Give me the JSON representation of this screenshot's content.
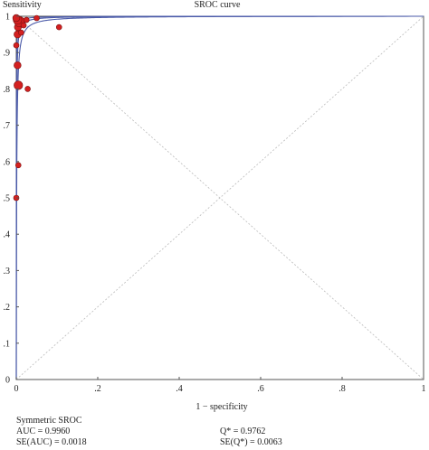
{
  "chart_data": {
    "type": "scatter",
    "title": "SROC curve",
    "xlabel": "1 − specificity",
    "ylabel": "Sensitivity",
    "xlim": [
      0,
      1
    ],
    "ylim": [
      0,
      1
    ],
    "xticks": [
      "0",
      ".2",
      ".4",
      ".6",
      ".8",
      "1"
    ],
    "yticks": [
      "0",
      ".1",
      ".2",
      ".3",
      ".4",
      ".5",
      ".6",
      ".7",
      ".8",
      ".9",
      "1"
    ],
    "grid": false,
    "diagonals": true,
    "point_color": "#d42020",
    "curve_color": "#4a5aa8",
    "points": [
      {
        "x": 0.0,
        "y": 0.5,
        "size": 2
      },
      {
        "x": 0.005,
        "y": 0.59,
        "size": 2
      },
      {
        "x": 0.005,
        "y": 0.81,
        "size": 4
      },
      {
        "x": 0.028,
        "y": 0.8,
        "size": 2
      },
      {
        "x": 0.003,
        "y": 0.865,
        "size": 3
      },
      {
        "x": 0.0,
        "y": 0.92,
        "size": 2
      },
      {
        "x": 0.003,
        "y": 0.95,
        "size": 3
      },
      {
        "x": 0.012,
        "y": 0.955,
        "size": 2
      },
      {
        "x": 0.004,
        "y": 0.97,
        "size": 3
      },
      {
        "x": 0.008,
        "y": 0.985,
        "size": 5
      },
      {
        "x": 0.003,
        "y": 0.99,
        "size": 4
      },
      {
        "x": 0.0,
        "y": 0.995,
        "size": 3
      },
      {
        "x": 0.018,
        "y": 0.975,
        "size": 2
      },
      {
        "x": 0.025,
        "y": 0.99,
        "size": 2
      },
      {
        "x": 0.05,
        "y": 0.995,
        "size": 2
      },
      {
        "x": 0.105,
        "y": 0.97,
        "size": 2
      }
    ]
  },
  "stats": {
    "heading": "Symmetric SROC",
    "auc": "AUC = 0.9960",
    "se_auc": "SE(AUC) = 0.0018",
    "q": "Q* = 0.9762",
    "se_q": "SE(Q*) = 0.0063"
  }
}
